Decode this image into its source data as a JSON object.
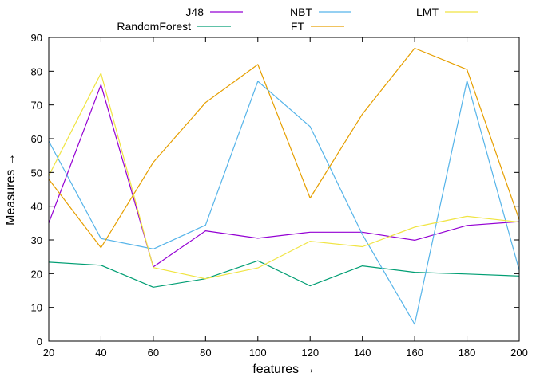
{
  "chart_data": {
    "type": "line",
    "title": "",
    "xlabel": "features →",
    "ylabel": "Measures →",
    "x": [
      20,
      40,
      60,
      80,
      100,
      120,
      140,
      160,
      180,
      200
    ],
    "xlim": [
      20,
      200
    ],
    "ylim": [
      0,
      90
    ],
    "xticks": [
      "20",
      "40",
      "60",
      "80",
      "100",
      "120",
      "140",
      "160",
      "180",
      "200"
    ],
    "yticks": [
      "0",
      "10",
      "20",
      "30",
      "40",
      "50",
      "60",
      "70",
      "80",
      "90"
    ],
    "grid": false,
    "legend_position": "top",
    "series": [
      {
        "name": "J48",
        "color": "#9400d3",
        "values": [
          35,
          76,
          22,
          32.7,
          30.5,
          32.3,
          32.3,
          29.9,
          34.3,
          35.4
        ]
      },
      {
        "name": "RandomForest",
        "color": "#009e73",
        "values": [
          23.4,
          22.5,
          16,
          18.5,
          23.8,
          16.4,
          22.3,
          20.4,
          19.9,
          19.3
        ]
      },
      {
        "name": "NBT",
        "color": "#56b4e9",
        "values": [
          59.3,
          30.4,
          27.3,
          34.4,
          77,
          63.6,
          31.6,
          5,
          77.2,
          21
        ]
      },
      {
        "name": "FT",
        "color": "#e69f00",
        "values": [
          48,
          27.7,
          53,
          70.7,
          82,
          42.4,
          67.3,
          86.8,
          80.5,
          36
        ]
      },
      {
        "name": "LMT",
        "color": "#f0e442",
        "values": [
          49,
          79.4,
          21.8,
          18.5,
          21.7,
          29.6,
          28,
          33.8,
          37,
          35.3
        ]
      }
    ]
  }
}
